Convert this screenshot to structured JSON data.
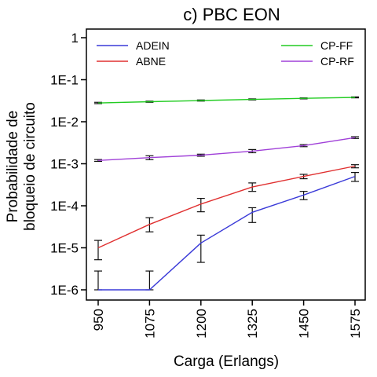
{
  "chart_data": {
    "type": "line",
    "title": "c) PBC EON",
    "xlabel": "Carga (Erlangs)",
    "ylabel_lines": [
      "Probabilidade de",
      "bloqueio de circuito"
    ],
    "y_scale": "log",
    "ylim": [
      1e-06,
      1
    ],
    "categories": [
      "950",
      "1075",
      "1200",
      "1325",
      "1450",
      "1575"
    ],
    "y_tick_values": [
      1,
      0.1,
      0.01,
      0.001,
      0.0001,
      1e-05,
      1e-06
    ],
    "y_tick_labels": [
      "1",
      "1E-1",
      "1E-2",
      "1E-3",
      "1E-4",
      "1E-5",
      "1E-6"
    ],
    "legend": {
      "left": [
        "ADEIN",
        "ABNE"
      ],
      "right": [
        "CP-FF",
        "CP-RF"
      ]
    },
    "series": [
      {
        "name": "ADEIN",
        "color": "#3a3ad8",
        "values": [
          1e-06,
          1e-06,
          1.3e-05,
          7e-05,
          0.00018,
          0.0005
        ],
        "err_low": [
          1e-06,
          1e-06,
          4.5e-06,
          4e-05,
          0.00014,
          0.00038
        ],
        "err_high": [
          2.8e-06,
          2.8e-06,
          2e-05,
          9e-05,
          0.00022,
          0.00062
        ]
      },
      {
        "name": "ABNE",
        "color": "#e03030",
        "values": [
          1e-05,
          3.6e-05,
          0.00011,
          0.00028,
          0.0005,
          0.00088
        ],
        "err_low": [
          5.2e-06,
          2.4e-05,
          7.2e-05,
          0.00022,
          0.00044,
          0.0008
        ],
        "err_high": [
          1.5e-05,
          5.2e-05,
          0.00015,
          0.00035,
          0.00056,
          0.00095
        ]
      },
      {
        "name": "CP-FF",
        "color": "#22cc22",
        "values": [
          0.028,
          0.03,
          0.032,
          0.034,
          0.036,
          0.038
        ],
        "err_low": [
          0.027,
          0.029,
          0.031,
          0.033,
          0.035,
          0.037
        ],
        "err_high": [
          0.029,
          0.031,
          0.033,
          0.035,
          0.037,
          0.039
        ]
      },
      {
        "name": "CP-RF",
        "color": "#a040d8",
        "values": [
          0.0012,
          0.0014,
          0.0016,
          0.002,
          0.0027,
          0.0042
        ],
        "err_low": [
          0.00114,
          0.00125,
          0.00151,
          0.00183,
          0.00255,
          0.004
        ],
        "err_high": [
          0.00126,
          0.00155,
          0.00169,
          0.00218,
          0.00285,
          0.0044
        ]
      }
    ]
  }
}
